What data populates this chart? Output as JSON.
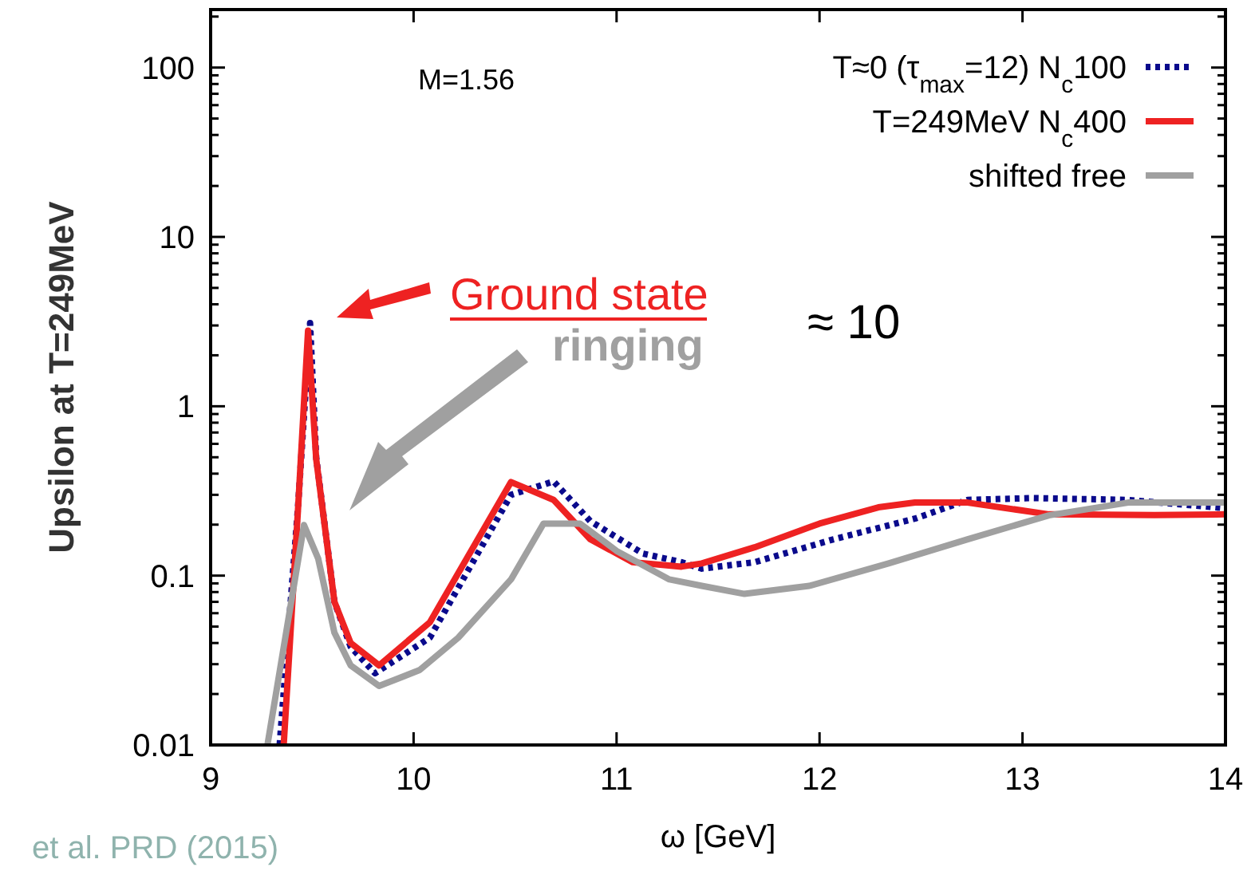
{
  "chart_data": {
    "type": "line",
    "xlabel": "ω [GeV]",
    "ylabel": "Upsilon at T=249MeV",
    "annotations": [
      "M=1.56",
      "Ground state",
      "≈ 10",
      "ringing",
      "et al. PRD (2015)"
    ],
    "xlim": [
      9,
      14
    ],
    "xticks": [
      9,
      10,
      11,
      12,
      13,
      14
    ],
    "ylim": [
      0.01,
      220
    ],
    "log": "y",
    "yticks": [
      0.01,
      {
        "value": 0.02,
        "label": null
      },
      {
        "value": 0.03,
        "label": null
      },
      {
        "value": 0.04,
        "label": null
      },
      {
        "value": 0.05,
        "label": null
      },
      {
        "value": 0.06,
        "label": null
      },
      {
        "value": 0.07,
        "label": null
      },
      {
        "value": 0.08,
        "label": null
      },
      {
        "value": 0.09,
        "label": null
      },
      0.1,
      {
        "value": 0.2,
        "label": null
      },
      {
        "value": 0.3,
        "label": null
      },
      {
        "value": 0.4,
        "label": null
      },
      {
        "value": 0.5,
        "label": null
      },
      {
        "value": 0.6,
        "label": null
      },
      {
        "value": 0.7,
        "label": null
      },
      {
        "value": 0.8,
        "label": null
      },
      {
        "value": 0.9,
        "label": null
      },
      1,
      {
        "value": 2,
        "label": null
      },
      {
        "value": 3,
        "label": null
      },
      {
        "value": 4,
        "label": null
      },
      {
        "value": 5,
        "label": null
      },
      {
        "value": 6,
        "label": null
      },
      {
        "value": 7,
        "label": null
      },
      {
        "value": 8,
        "label": null
      },
      {
        "value": 9,
        "label": null
      },
      10,
      {
        "value": 20,
        "label": null
      },
      {
        "value": 30,
        "label": null
      },
      {
        "value": 40,
        "label": null
      },
      {
        "value": 50,
        "label": null
      },
      {
        "value": 60,
        "label": null
      },
      {
        "value": 70,
        "label": null
      },
      {
        "value": 80,
        "label": null
      },
      {
        "value": 90,
        "label": null
      },
      100,
      {
        "value": 200,
        "label": null
      }
    ],
    "grid": false,
    "legend": "top right",
    "marker": "none",
    "series": [
      {
        "name": "T≈0 (τ$_{max}$=12) N$_{c}$100",
        "color": "#0a0a8c",
        "line_style": "dotted",
        "x": [
          9.34,
          9.43,
          9.49,
          9.52,
          9.61,
          9.69,
          9.81,
          10.08,
          10.27,
          10.48,
          10.69,
          10.87,
          11.13,
          11.32,
          11.42,
          11.68,
          12.07,
          12.47,
          12.73,
          13.05,
          13.52,
          14.0
        ],
        "values": [
          0.01,
          0.25,
          3.1,
          0.5,
          0.07,
          0.038,
          0.0265,
          0.043,
          0.108,
          0.3,
          0.36,
          0.21,
          0.135,
          0.12,
          0.11,
          0.12,
          0.164,
          0.217,
          0.28,
          0.287,
          0.28,
          0.25
        ]
      },
      {
        "name": "T=249MeV N$_{c}$400",
        "color": "#ee2222",
        "line_style": "solid",
        "x": [
          9.36,
          9.43,
          9.48,
          9.52,
          9.61,
          9.69,
          9.83,
          10.08,
          10.48,
          10.69,
          10.87,
          11.08,
          11.32,
          11.42,
          11.68,
          12.0,
          12.29,
          12.47,
          12.73,
          13.13,
          13.65,
          14.0
        ],
        "values": [
          0.01,
          0.24,
          2.8,
          0.49,
          0.07,
          0.04,
          0.0295,
          0.053,
          0.357,
          0.28,
          0.164,
          0.12,
          0.113,
          0.118,
          0.147,
          0.203,
          0.253,
          0.27,
          0.27,
          0.23,
          0.228,
          0.23
        ]
      },
      {
        "name": "shifted free",
        "color": "#a0a0a0",
        "line_style": "solid",
        "x": [
          9.28,
          9.46,
          9.53,
          9.61,
          9.69,
          9.83,
          10.03,
          10.22,
          10.48,
          10.64,
          10.82,
          11.0,
          11.26,
          11.42,
          11.63,
          11.95,
          12.34,
          12.73,
          13.13,
          13.52,
          14.0
        ],
        "values": [
          0.01,
          0.199,
          0.126,
          0.046,
          0.0295,
          0.0223,
          0.0277,
          0.043,
          0.095,
          0.203,
          0.203,
          0.14,
          0.095,
          0.087,
          0.078,
          0.087,
          0.118,
          0.164,
          0.227,
          0.27,
          0.27
        ]
      }
    ]
  }
}
